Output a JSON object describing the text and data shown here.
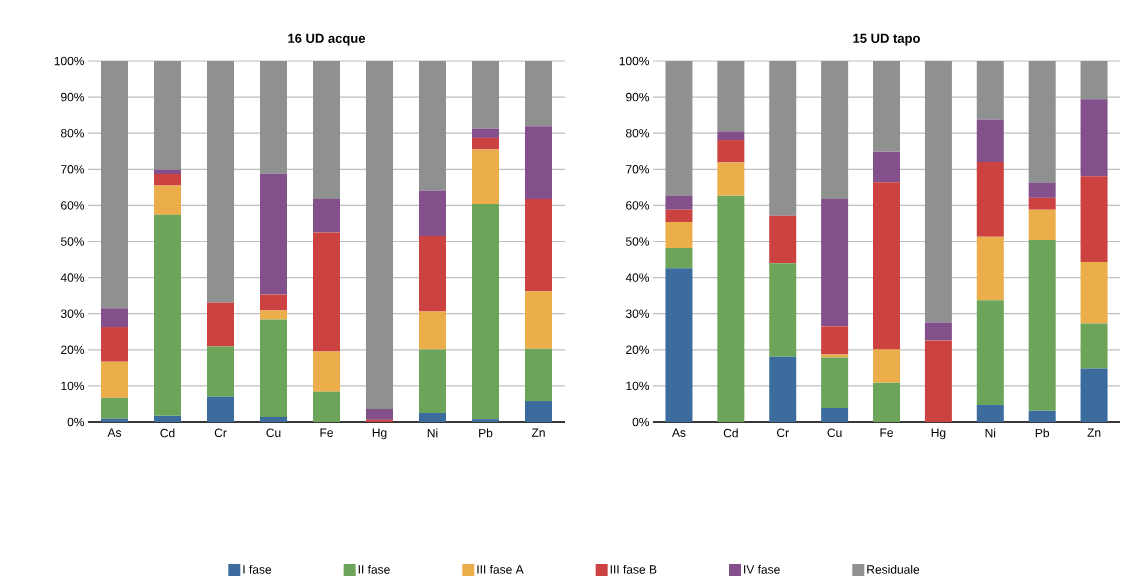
{
  "chart_data": [
    {
      "type": "bar",
      "title": "16 UD acque",
      "stacked": true,
      "legend": "bottom",
      "grid": "y",
      "categories": [
        "As",
        "Cd",
        "Cr",
        "Cu",
        "Fe",
        "Hg",
        "Ni",
        "Pb",
        "Zn"
      ],
      "ylim": [
        0,
        100
      ],
      "yticks": [
        {
          "value": 0,
          "label": "0%"
        },
        {
          "value": 10,
          "label": "10%"
        },
        {
          "value": 20,
          "label": "20%"
        },
        {
          "value": 30,
          "label": "30%"
        },
        {
          "value": 40,
          "label": "40%"
        },
        {
          "value": 50,
          "label": "50%"
        },
        {
          "value": 60,
          "label": "60%"
        },
        {
          "value": 70,
          "label": "70%"
        },
        {
          "value": 80,
          "label": "80%"
        },
        {
          "value": 90,
          "label": "90%"
        },
        {
          "value": 100,
          "label": "100%"
        }
      ],
      "series": [
        {
          "name": "I fase",
          "color": "#3c6b9e",
          "values": [
            0.9,
            1.7,
            7.0,
            1.4,
            0,
            0,
            2.5,
            0.8,
            5.8
          ]
        },
        {
          "name": "II fase",
          "color": "#6ca45a",
          "values": [
            5.8,
            55.7,
            13.9,
            27.0,
            8.4,
            0,
            17.6,
            59.6,
            14.5
          ]
        },
        {
          "name": "III fase A",
          "color": "#ecad4b",
          "values": [
            10.0,
            8.1,
            0,
            2.5,
            11.1,
            0,
            10.5,
            15.1,
            15.9
          ]
        },
        {
          "name": "III fase B",
          "color": "#cb4240",
          "values": [
            9.6,
            3.2,
            12.2,
            4.4,
            33.0,
            0.6,
            20.9,
            3.2,
            25.6
          ]
        },
        {
          "name": "IV fase",
          "color": "#83508b",
          "values": [
            5.2,
            1.2,
            0,
            33.5,
            9.3,
            3.0,
            12.6,
            2.6,
            20.1
          ]
        },
        {
          "name": "Residuale",
          "color": "#8f9190",
          "values": [
            68.5,
            30.1,
            66.9,
            31.2,
            38.2,
            96.4,
            35.9,
            18.7,
            18.1
          ]
        }
      ]
    },
    {
      "type": "bar",
      "title": "15 UD tapo",
      "stacked": true,
      "grid": "y",
      "categories": [
        "As",
        "Cd",
        "Cr",
        "Cu",
        "Fe",
        "Hg",
        "Ni",
        "Pb",
        "Zn"
      ],
      "ylim": [
        0,
        100
      ],
      "yticks": [
        {
          "value": 0,
          "label": "0%"
        },
        {
          "value": 10,
          "label": "10%"
        },
        {
          "value": 20,
          "label": "20%"
        },
        {
          "value": 30,
          "label": "30%"
        },
        {
          "value": 40,
          "label": "40%"
        },
        {
          "value": 50,
          "label": "50%"
        },
        {
          "value": 60,
          "label": "60%"
        },
        {
          "value": 70,
          "label": "70%"
        },
        {
          "value": 80,
          "label": "80%"
        },
        {
          "value": 90,
          "label": "90%"
        },
        {
          "value": 100,
          "label": "100%"
        }
      ],
      "series": [
        {
          "color": "#3c6b9e",
          "values": [
            42.6,
            0,
            18.1,
            3.9,
            0,
            0,
            4.7,
            3.1,
            14.8
          ]
        },
        {
          "color": "#6ca45a",
          "values": [
            5.6,
            62.7,
            25.9,
            14.0,
            10.9,
            0,
            29.0,
            47.3,
            12.5
          ]
        },
        {
          "color": "#ecad4b",
          "values": [
            7.2,
            9.2,
            0,
            0.8,
            9.2,
            0,
            17.6,
            8.4,
            17.0
          ]
        },
        {
          "color": "#cb4240",
          "values": [
            3.4,
            6.2,
            13.1,
            7.8,
            46.3,
            22.6,
            20.7,
            3.3,
            23.8
          ]
        },
        {
          "color": "#83508b",
          "values": [
            3.9,
            2.4,
            0,
            35.3,
            8.5,
            5.0,
            11.8,
            4.2,
            21.3
          ]
        },
        {
          "color": "#8f9190",
          "values": [
            37.3,
            19.5,
            42.9,
            38.2,
            25.1,
            72.4,
            16.2,
            33.7,
            10.6
          ]
        }
      ]
    }
  ]
}
